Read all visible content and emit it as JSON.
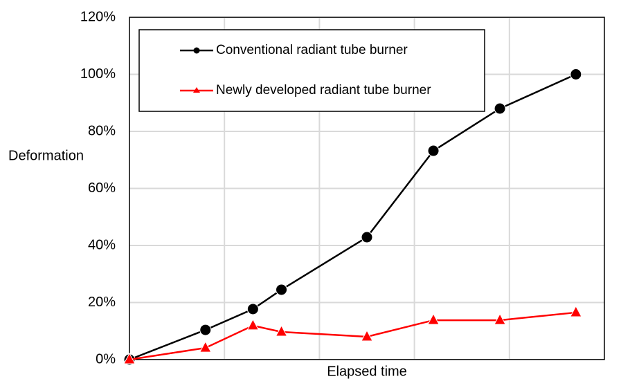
{
  "chart_data": {
    "type": "line",
    "y_label": "Deformation",
    "x_label": "Elapsed time",
    "x": [
      0,
      0.8,
      1.3,
      1.6,
      2.5,
      3.2,
      3.9,
      4.7
    ],
    "series": [
      {
        "name": "Conventional radiant tube burner",
        "color": "#000000",
        "marker": "circle",
        "values": [
          0,
          10.4,
          17.7,
          24.5,
          42.9,
          73.2,
          88,
          100
        ]
      },
      {
        "name": "Newly developed radiant tube burner",
        "color": "#ff0000",
        "marker": "triangle",
        "values": [
          0,
          4.1,
          11.9,
          9.7,
          8,
          13.8,
          13.8,
          16.5
        ]
      }
    ],
    "xlim": [
      0,
      5
    ],
    "xticks": [
      1,
      2,
      3,
      4
    ],
    "ylim": [
      0,
      120
    ],
    "yticks": [
      {
        "value": 0,
        "label": "0%"
      },
      {
        "value": 20,
        "label": "20%"
      },
      {
        "value": 40,
        "label": "40%"
      },
      {
        "value": 60,
        "label": "60%"
      },
      {
        "value": 80,
        "label": "80%"
      },
      {
        "value": 100,
        "label": "100%"
      },
      {
        "value": 120,
        "label": "120%"
      }
    ],
    "grid": true
  }
}
